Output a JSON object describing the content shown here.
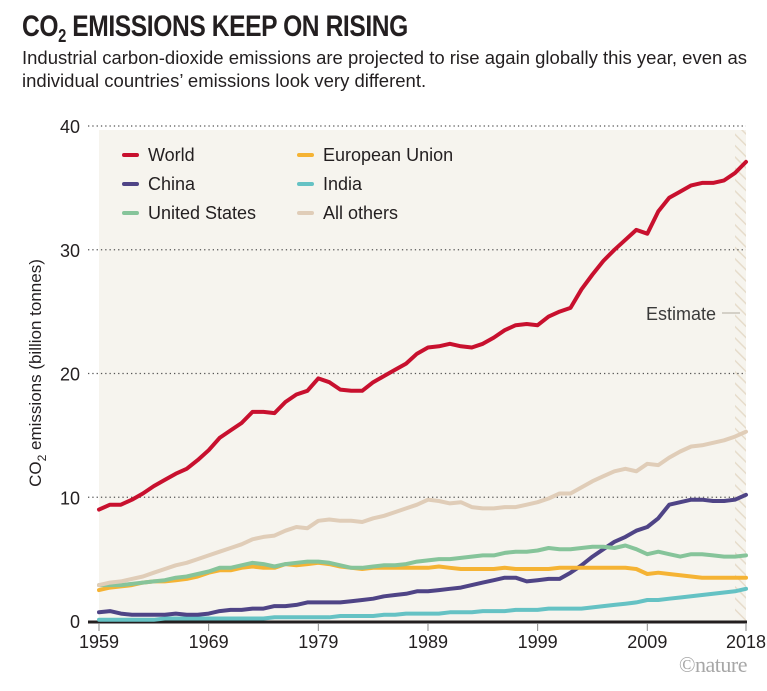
{
  "header": {
    "title_prefix": "CO",
    "title_sub": "2",
    "title_rest": " EMISSIONS KEEP ON RISING",
    "subtitle": "Industrial carbon-dioxide emissions are projected to rise again globally this year, even as individual countries’ emissions look very different."
  },
  "credit": "©nature",
  "chart_data": {
    "type": "line",
    "title": "CO2 EMISSIONS KEEP ON RISING",
    "xlabel": "",
    "ylabel_prefix": "CO",
    "ylabel_sub": "2",
    "ylabel_rest": " emissions (billion tonnes)",
    "ylabel": "CO2 emissions (billion tonnes)",
    "xlim": [
      1959,
      2018
    ],
    "ylim": [
      0,
      40
    ],
    "x_ticks": [
      1959,
      1969,
      1979,
      1989,
      1999,
      2009,
      2018
    ],
    "y_ticks": [
      0,
      10,
      20,
      30,
      40
    ],
    "grid": "horizontal dotted",
    "legend_position": "top-left",
    "estimate_region": {
      "from": 2017,
      "to": 2018,
      "label": "Estimate"
    },
    "x": [
      1959,
      1960,
      1961,
      1962,
      1963,
      1964,
      1965,
      1966,
      1967,
      1968,
      1969,
      1970,
      1971,
      1972,
      1973,
      1974,
      1975,
      1976,
      1977,
      1978,
      1979,
      1980,
      1981,
      1982,
      1983,
      1984,
      1985,
      1986,
      1987,
      1988,
      1989,
      1990,
      1991,
      1992,
      1993,
      1994,
      1995,
      1996,
      1997,
      1998,
      1999,
      2000,
      2001,
      2002,
      2003,
      2004,
      2005,
      2006,
      2007,
      2008,
      2009,
      2010,
      2011,
      2012,
      2013,
      2014,
      2015,
      2016,
      2017,
      2018
    ],
    "series": [
      {
        "name": "World",
        "color": "#c8102e",
        "values": [
          9.0,
          9.4,
          9.4,
          9.8,
          10.3,
          10.9,
          11.4,
          11.9,
          12.3,
          13.0,
          13.8,
          14.8,
          15.4,
          16.0,
          16.9,
          16.9,
          16.8,
          17.7,
          18.3,
          18.6,
          19.6,
          19.3,
          18.7,
          18.6,
          18.6,
          19.3,
          19.8,
          20.3,
          20.8,
          21.6,
          22.1,
          22.2,
          22.4,
          22.2,
          22.1,
          22.4,
          22.9,
          23.5,
          23.9,
          24.0,
          23.9,
          24.6,
          25.0,
          25.3,
          26.8,
          28.0,
          29.1,
          30.0,
          30.8,
          31.6,
          31.3,
          33.1,
          34.2,
          34.7,
          35.2,
          35.4,
          35.4,
          35.6,
          36.2,
          37.1
        ]
      },
      {
        "name": "European Union",
        "color": "#f5b334",
        "values": [
          2.5,
          2.7,
          2.8,
          2.9,
          3.1,
          3.2,
          3.2,
          3.3,
          3.4,
          3.6,
          3.9,
          4.1,
          4.1,
          4.3,
          4.4,
          4.3,
          4.3,
          4.6,
          4.5,
          4.6,
          4.7,
          4.6,
          4.4,
          4.3,
          4.2,
          4.3,
          4.3,
          4.3,
          4.3,
          4.3,
          4.3,
          4.4,
          4.3,
          4.2,
          4.2,
          4.2,
          4.2,
          4.3,
          4.2,
          4.2,
          4.2,
          4.2,
          4.3,
          4.3,
          4.3,
          4.3,
          4.3,
          4.3,
          4.3,
          4.2,
          3.8,
          3.9,
          3.8,
          3.7,
          3.6,
          3.5,
          3.5,
          3.5,
          3.5,
          3.5
        ]
      },
      {
        "name": "China",
        "color": "#4f4486",
        "values": [
          0.7,
          0.8,
          0.6,
          0.5,
          0.5,
          0.5,
          0.5,
          0.6,
          0.5,
          0.5,
          0.6,
          0.8,
          0.9,
          0.9,
          1.0,
          1.0,
          1.2,
          1.2,
          1.3,
          1.5,
          1.5,
          1.5,
          1.5,
          1.6,
          1.7,
          1.8,
          2.0,
          2.1,
          2.2,
          2.4,
          2.4,
          2.5,
          2.6,
          2.7,
          2.9,
          3.1,
          3.3,
          3.5,
          3.5,
          3.2,
          3.3,
          3.4,
          3.4,
          3.9,
          4.5,
          5.2,
          5.8,
          6.4,
          6.8,
          7.3,
          7.6,
          8.3,
          9.4,
          9.6,
          9.8,
          9.8,
          9.7,
          9.7,
          9.8,
          10.2
        ]
      },
      {
        "name": "India",
        "color": "#65c2c4",
        "values": [
          0.1,
          0.1,
          0.1,
          0.1,
          0.1,
          0.1,
          0.2,
          0.2,
          0.2,
          0.2,
          0.2,
          0.2,
          0.2,
          0.2,
          0.2,
          0.2,
          0.3,
          0.3,
          0.3,
          0.3,
          0.3,
          0.3,
          0.4,
          0.4,
          0.4,
          0.4,
          0.5,
          0.5,
          0.6,
          0.6,
          0.6,
          0.6,
          0.7,
          0.7,
          0.7,
          0.8,
          0.8,
          0.8,
          0.9,
          0.9,
          0.9,
          1.0,
          1.0,
          1.0,
          1.0,
          1.1,
          1.2,
          1.3,
          1.4,
          1.5,
          1.7,
          1.7,
          1.8,
          1.9,
          2.0,
          2.1,
          2.2,
          2.3,
          2.4,
          2.6
        ]
      },
      {
        "name": "United States",
        "color": "#86c49a",
        "values": [
          2.9,
          2.9,
          2.9,
          3.0,
          3.1,
          3.2,
          3.3,
          3.5,
          3.6,
          3.8,
          4.0,
          4.3,
          4.3,
          4.5,
          4.7,
          4.6,
          4.4,
          4.6,
          4.7,
          4.8,
          4.8,
          4.7,
          4.5,
          4.3,
          4.3,
          4.4,
          4.5,
          4.5,
          4.6,
          4.8,
          4.9,
          5.0,
          5.0,
          5.1,
          5.2,
          5.3,
          5.3,
          5.5,
          5.6,
          5.6,
          5.7,
          5.9,
          5.8,
          5.8,
          5.9,
          6.0,
          6.0,
          5.9,
          6.1,
          5.8,
          5.4,
          5.6,
          5.4,
          5.2,
          5.4,
          5.4,
          5.3,
          5.2,
          5.2,
          5.3
        ]
      },
      {
        "name": "All others",
        "color": "#e0cdb8",
        "values": [
          2.9,
          3.1,
          3.2,
          3.4,
          3.6,
          3.9,
          4.2,
          4.5,
          4.7,
          5.0,
          5.3,
          5.6,
          5.9,
          6.2,
          6.6,
          6.8,
          6.9,
          7.3,
          7.6,
          7.5,
          8.1,
          8.2,
          8.1,
          8.1,
          8.0,
          8.3,
          8.5,
          8.8,
          9.1,
          9.4,
          9.8,
          9.7,
          9.5,
          9.6,
          9.2,
          9.1,
          9.1,
          9.2,
          9.2,
          9.4,
          9.6,
          9.9,
          10.3,
          10.3,
          10.8,
          11.3,
          11.7,
          12.1,
          12.3,
          12.1,
          12.7,
          12.6,
          13.2,
          13.7,
          14.1,
          14.2,
          14.4,
          14.6,
          14.9,
          15.3
        ]
      }
    ],
    "legend": [
      "World",
      "European Union",
      "China",
      "India",
      "United States",
      "All others"
    ]
  }
}
